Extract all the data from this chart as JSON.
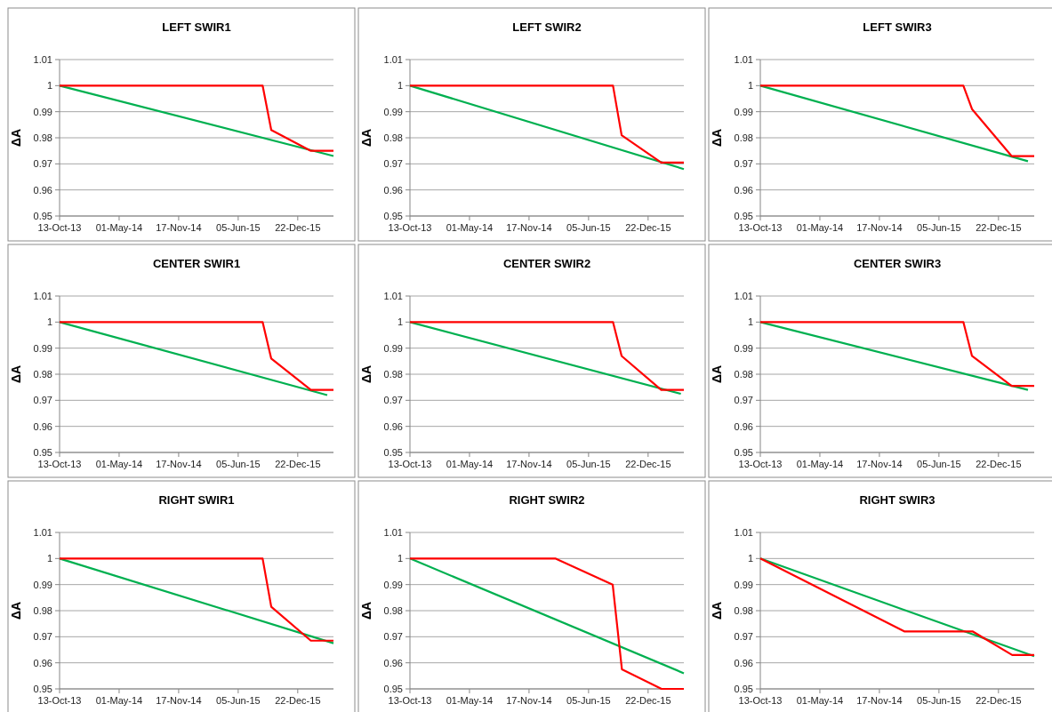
{
  "chart_data": [
    {
      "type": "line",
      "title": "LEFT SWIR1",
      "ylabel": "ΔA",
      "xlim": [
        "2013-10-13",
        "2016-04-20"
      ],
      "xticks": [
        {
          "value": "2013-10-13",
          "label": "13-Oct-13"
        },
        {
          "value": "2014-05-01",
          "label": "01-May-14"
        },
        {
          "value": "2014-11-17",
          "label": "17-Nov-14"
        },
        {
          "value": "2015-06-05",
          "label": "05-Jun-15"
        },
        {
          "value": "2015-12-22",
          "label": "22-Dec-15"
        }
      ],
      "ylim": [
        0.95,
        1.01
      ],
      "yticks": [
        0.95,
        0.96,
        0.97,
        0.98,
        0.99,
        1,
        1.01
      ],
      "grid": "y",
      "series": [
        {
          "color": "#00b050",
          "x": [
            "2013-10-13",
            "2016-04-20"
          ],
          "values": [
            1,
            0.973
          ]
        },
        {
          "color": "#ff0000",
          "x": [
            "2013-10-13",
            "2015-08-26",
            "2015-09-24",
            "2016-02-04",
            "2016-04-20"
          ],
          "values": [
            1,
            1,
            0.983,
            0.975,
            0.975
          ]
        }
      ]
    },
    {
      "type": "line",
      "title": "LEFT SWIR2",
      "ylabel": "ΔA",
      "xlim": [
        "2013-10-13",
        "2016-04-20"
      ],
      "xticks": [
        {
          "value": "2013-10-13",
          "label": "13-Oct-13"
        },
        {
          "value": "2014-05-01",
          "label": "01-May-14"
        },
        {
          "value": "2014-11-17",
          "label": "17-Nov-14"
        },
        {
          "value": "2015-06-05",
          "label": "05-Jun-15"
        },
        {
          "value": "2015-12-22",
          "label": "22-Dec-15"
        }
      ],
      "ylim": [
        0.95,
        1.01
      ],
      "yticks": [
        0.95,
        0.96,
        0.97,
        0.98,
        0.99,
        1,
        1.01
      ],
      "grid": "y",
      "series": [
        {
          "color": "#00b050",
          "x": [
            "2013-10-13",
            "2016-04-20"
          ],
          "values": [
            1,
            0.968
          ]
        },
        {
          "color": "#ff0000",
          "x": [
            "2013-10-13",
            "2015-08-26",
            "2015-09-24",
            "2016-02-04",
            "2016-04-20"
          ],
          "values": [
            1,
            1,
            0.981,
            0.9705,
            0.9705
          ]
        }
      ]
    },
    {
      "type": "line",
      "title": "LEFT SWIR3",
      "ylabel": "ΔA",
      "xlim": [
        "2013-10-13",
        "2016-04-20"
      ],
      "xticks": [
        {
          "value": "2013-10-13",
          "label": "13-Oct-13"
        },
        {
          "value": "2014-05-01",
          "label": "01-May-14"
        },
        {
          "value": "2014-11-17",
          "label": "17-Nov-14"
        },
        {
          "value": "2015-06-05",
          "label": "05-Jun-15"
        },
        {
          "value": "2015-12-22",
          "label": "22-Dec-15"
        }
      ],
      "ylim": [
        0.95,
        1.01
      ],
      "yticks": [
        0.95,
        0.96,
        0.97,
        0.98,
        0.99,
        1,
        1.01
      ],
      "grid": "y",
      "series": [
        {
          "color": "#00b050",
          "x": [
            "2013-10-13",
            "2016-03-30"
          ],
          "values": [
            1,
            0.971
          ]
        },
        {
          "color": "#ff0000",
          "x": [
            "2013-10-13",
            "2015-08-26",
            "2015-09-24",
            "2016-02-04",
            "2016-04-20"
          ],
          "values": [
            1,
            1,
            0.991,
            0.973,
            0.973
          ]
        }
      ]
    },
    {
      "type": "line",
      "title": "CENTER SWIR1",
      "ylabel": "ΔA",
      "xlim": [
        "2013-10-13",
        "2016-04-20"
      ],
      "xticks": [
        {
          "value": "2013-10-13",
          "label": "13-Oct-13"
        },
        {
          "value": "2014-05-01",
          "label": "01-May-14"
        },
        {
          "value": "2014-11-17",
          "label": "17-Nov-14"
        },
        {
          "value": "2015-06-05",
          "label": "05-Jun-15"
        },
        {
          "value": "2015-12-22",
          "label": "22-Dec-15"
        }
      ],
      "ylim": [
        0.95,
        1.01
      ],
      "yticks": [
        0.95,
        0.96,
        0.97,
        0.98,
        0.99,
        1,
        1.01
      ],
      "grid": "y",
      "series": [
        {
          "color": "#00b050",
          "x": [
            "2013-10-13",
            "2016-03-30"
          ],
          "values": [
            1,
            0.972
          ]
        },
        {
          "color": "#ff0000",
          "x": [
            "2013-10-13",
            "2015-08-26",
            "2015-09-24",
            "2016-02-04",
            "2016-04-20"
          ],
          "values": [
            1,
            1,
            0.986,
            0.974,
            0.974
          ]
        }
      ]
    },
    {
      "type": "line",
      "title": "CENTER SWIR2",
      "ylabel": "ΔA",
      "xlim": [
        "2013-10-13",
        "2016-04-20"
      ],
      "xticks": [
        {
          "value": "2013-10-13",
          "label": "13-Oct-13"
        },
        {
          "value": "2014-05-01",
          "label": "01-May-14"
        },
        {
          "value": "2014-11-17",
          "label": "17-Nov-14"
        },
        {
          "value": "2015-06-05",
          "label": "05-Jun-15"
        },
        {
          "value": "2015-12-22",
          "label": "22-Dec-15"
        }
      ],
      "ylim": [
        0.95,
        1.01
      ],
      "yticks": [
        0.95,
        0.96,
        0.97,
        0.98,
        0.99,
        1,
        1.01
      ],
      "grid": "y",
      "series": [
        {
          "color": "#00b050",
          "x": [
            "2013-10-13",
            "2016-04-10"
          ],
          "values": [
            1,
            0.9725
          ]
        },
        {
          "color": "#ff0000",
          "x": [
            "2013-10-13",
            "2015-08-26",
            "2015-09-24",
            "2016-02-04",
            "2016-04-20"
          ],
          "values": [
            1,
            1,
            0.987,
            0.974,
            0.974
          ]
        }
      ]
    },
    {
      "type": "line",
      "title": "CENTER SWIR3",
      "ylabel": "ΔA",
      "xlim": [
        "2013-10-13",
        "2016-04-20"
      ],
      "xticks": [
        {
          "value": "2013-10-13",
          "label": "13-Oct-13"
        },
        {
          "value": "2014-05-01",
          "label": "01-May-14"
        },
        {
          "value": "2014-11-17",
          "label": "17-Nov-14"
        },
        {
          "value": "2015-06-05",
          "label": "05-Jun-15"
        },
        {
          "value": "2015-12-22",
          "label": "22-Dec-15"
        }
      ],
      "ylim": [
        0.95,
        1.01
      ],
      "yticks": [
        0.95,
        0.96,
        0.97,
        0.98,
        0.99,
        1,
        1.01
      ],
      "grid": "y",
      "series": [
        {
          "color": "#00b050",
          "x": [
            "2013-10-13",
            "2016-03-30"
          ],
          "values": [
            1,
            0.974
          ]
        },
        {
          "color": "#ff0000",
          "x": [
            "2013-10-13",
            "2015-08-26",
            "2015-09-24",
            "2016-02-04",
            "2016-04-20"
          ],
          "values": [
            1,
            1,
            0.987,
            0.9755,
            0.9755
          ]
        }
      ]
    },
    {
      "type": "line",
      "title": "RIGHT SWIR1",
      "ylabel": "ΔA",
      "xlim": [
        "2013-10-13",
        "2016-04-20"
      ],
      "xticks": [
        {
          "value": "2013-10-13",
          "label": "13-Oct-13"
        },
        {
          "value": "2014-05-01",
          "label": "01-May-14"
        },
        {
          "value": "2014-11-17",
          "label": "17-Nov-14"
        },
        {
          "value": "2015-06-05",
          "label": "05-Jun-15"
        },
        {
          "value": "2015-12-22",
          "label": "22-Dec-15"
        }
      ],
      "ylim": [
        0.95,
        1.01
      ],
      "yticks": [
        0.95,
        0.96,
        0.97,
        0.98,
        0.99,
        1,
        1.01
      ],
      "grid": "y",
      "series": [
        {
          "color": "#00b050",
          "x": [
            "2013-10-13",
            "2016-04-20"
          ],
          "values": [
            1,
            0.9675
          ]
        },
        {
          "color": "#ff0000",
          "x": [
            "2013-10-13",
            "2015-08-26",
            "2015-09-24",
            "2016-02-04",
            "2016-04-20"
          ],
          "values": [
            1,
            1,
            0.9815,
            0.9685,
            0.9685
          ]
        }
      ]
    },
    {
      "type": "line",
      "title": "RIGHT SWIR2",
      "ylabel": "ΔA",
      "xlim": [
        "2013-10-13",
        "2016-04-20"
      ],
      "xticks": [
        {
          "value": "2013-10-13",
          "label": "13-Oct-13"
        },
        {
          "value": "2014-05-01",
          "label": "01-May-14"
        },
        {
          "value": "2014-11-17",
          "label": "17-Nov-14"
        },
        {
          "value": "2015-06-05",
          "label": "05-Jun-15"
        },
        {
          "value": "2015-12-22",
          "label": "22-Dec-15"
        }
      ],
      "ylim": [
        0.95,
        1.01
      ],
      "yticks": [
        0.95,
        0.96,
        0.97,
        0.98,
        0.99,
        1,
        1.01
      ],
      "grid": "y",
      "series": [
        {
          "color": "#00b050",
          "x": [
            "2013-10-13",
            "2016-04-20"
          ],
          "values": [
            1,
            0.956
          ]
        },
        {
          "color": "#ff0000",
          "x": [
            "2013-10-13",
            "2015-02-13",
            "2015-08-25",
            "2015-09-25",
            "2016-02-05",
            "2016-04-20"
          ],
          "values": [
            1,
            1,
            0.99,
            0.9575,
            0.95,
            0.95
          ]
        }
      ]
    },
    {
      "type": "line",
      "title": "RIGHT SWIR3",
      "ylabel": "ΔA",
      "xlim": [
        "2013-10-13",
        "2016-04-20"
      ],
      "xticks": [
        {
          "value": "2013-10-13",
          "label": "13-Oct-13"
        },
        {
          "value": "2014-05-01",
          "label": "01-May-14"
        },
        {
          "value": "2014-11-17",
          "label": "17-Nov-14"
        },
        {
          "value": "2015-06-05",
          "label": "05-Jun-15"
        },
        {
          "value": "2015-12-22",
          "label": "22-Dec-15"
        }
      ],
      "ylim": [
        0.95,
        1.01
      ],
      "yticks": [
        0.95,
        0.96,
        0.97,
        0.98,
        0.99,
        1,
        1.01
      ],
      "grid": "y",
      "series": [
        {
          "color": "#00b050",
          "x": [
            "2013-10-13",
            "2016-04-20"
          ],
          "values": [
            1,
            0.9625
          ]
        },
        {
          "color": "#ff0000",
          "x": [
            "2013-10-13",
            "2015-02-10",
            "2015-09-27",
            "2016-02-06",
            "2016-04-20"
          ],
          "values": [
            1,
            0.972,
            0.972,
            0.963,
            0.963
          ]
        }
      ]
    }
  ]
}
